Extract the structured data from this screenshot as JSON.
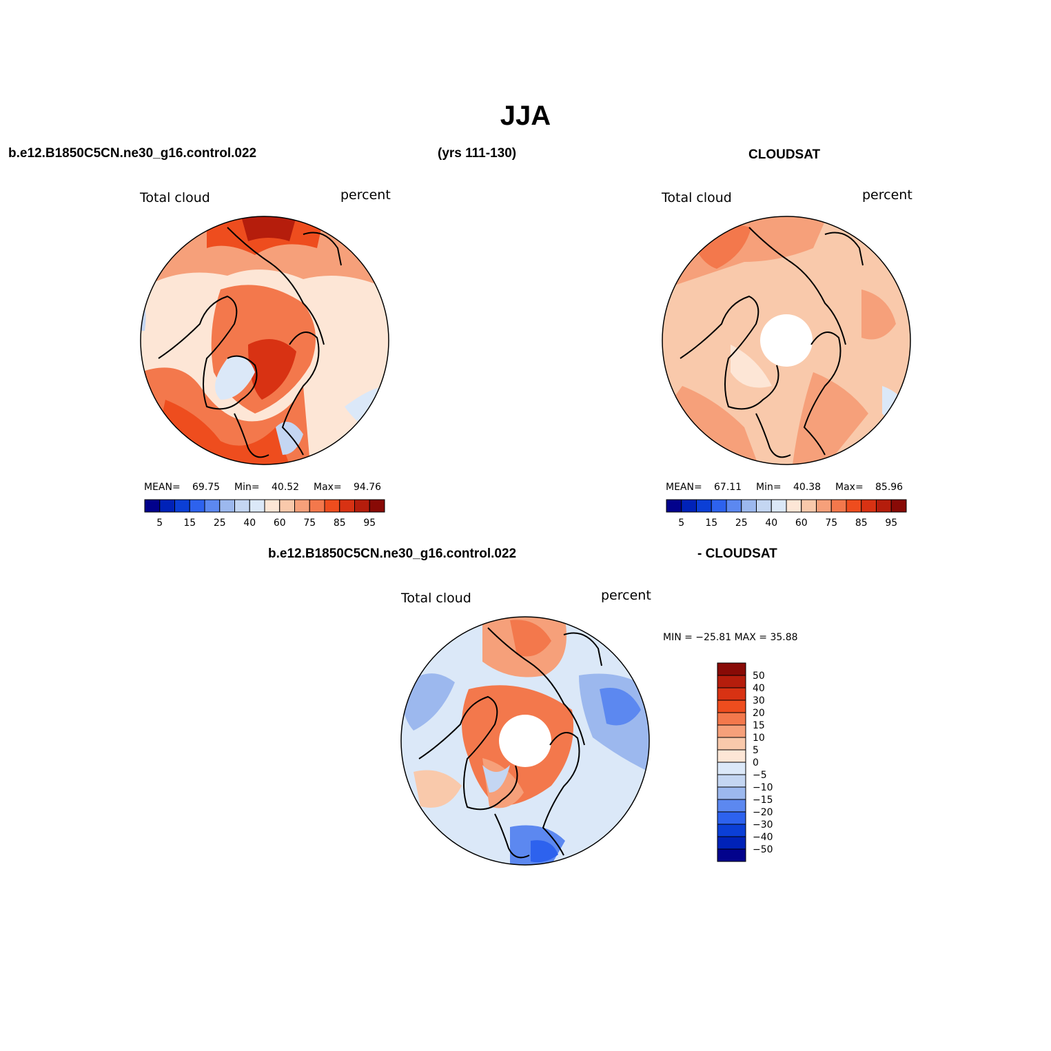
{
  "title": "JJA",
  "header": {
    "case_name": "b.e12.B1850C5CN.ne30_g16.control.022",
    "years": "(yrs 111-130)",
    "obs_name": "CLOUDSAT"
  },
  "diff_header": {
    "case_name": "b.e12.B1850C5CN.ne30_g16.control.022",
    "obs_name": "- CLOUDSAT"
  },
  "panels": {
    "model": {
      "variable": "Total cloud",
      "units": "percent",
      "mean_label": "MEAN=",
      "mean_value": "69.75",
      "min_label": "Min=",
      "min_value": "40.52",
      "max_label": "Max=",
      "max_value": "94.76"
    },
    "obs": {
      "variable": "Total cloud",
      "units": "percent",
      "mean_label": "MEAN=",
      "mean_value": "67.11",
      "min_label": "Min=",
      "min_value": "40.38",
      "max_label": "Max=",
      "max_value": "85.96"
    },
    "diff": {
      "variable": "Total cloud",
      "units": "percent",
      "minmax_text": "MIN = −25.81  MAX =   35.88"
    }
  },
  "colorbar_abs": {
    "colors": [
      "#02028c",
      "#0022b8",
      "#0b3fd6",
      "#2d62ee",
      "#5c88f0",
      "#9cb8ee",
      "#c4d6f2",
      "#dbe8f8",
      "#fde6d6",
      "#f9c9ab",
      "#f6a07a",
      "#f3784c",
      "#ee4d1e",
      "#d83213",
      "#b51d0c",
      "#880a06"
    ],
    "tick_labels": [
      "5",
      "15",
      "25",
      "40",
      "60",
      "75",
      "85",
      "95"
    ]
  },
  "colorbar_diff": {
    "colors": [
      "#02028c",
      "#0022b8",
      "#0b3fd6",
      "#2d62ee",
      "#5c88f0",
      "#9cb8ee",
      "#c4d6f2",
      "#dbe8f8",
      "#fde6d6",
      "#f9c9ab",
      "#f6a07a",
      "#f3784c",
      "#ee4d1e",
      "#d83213",
      "#b51d0c",
      "#880a06"
    ],
    "tick_labels": [
      "50",
      "40",
      "30",
      "20",
      "15",
      "10",
      "5",
      "0",
      "−5",
      "−10",
      "−15",
      "−20",
      "−30",
      "−40",
      "−50"
    ]
  }
}
